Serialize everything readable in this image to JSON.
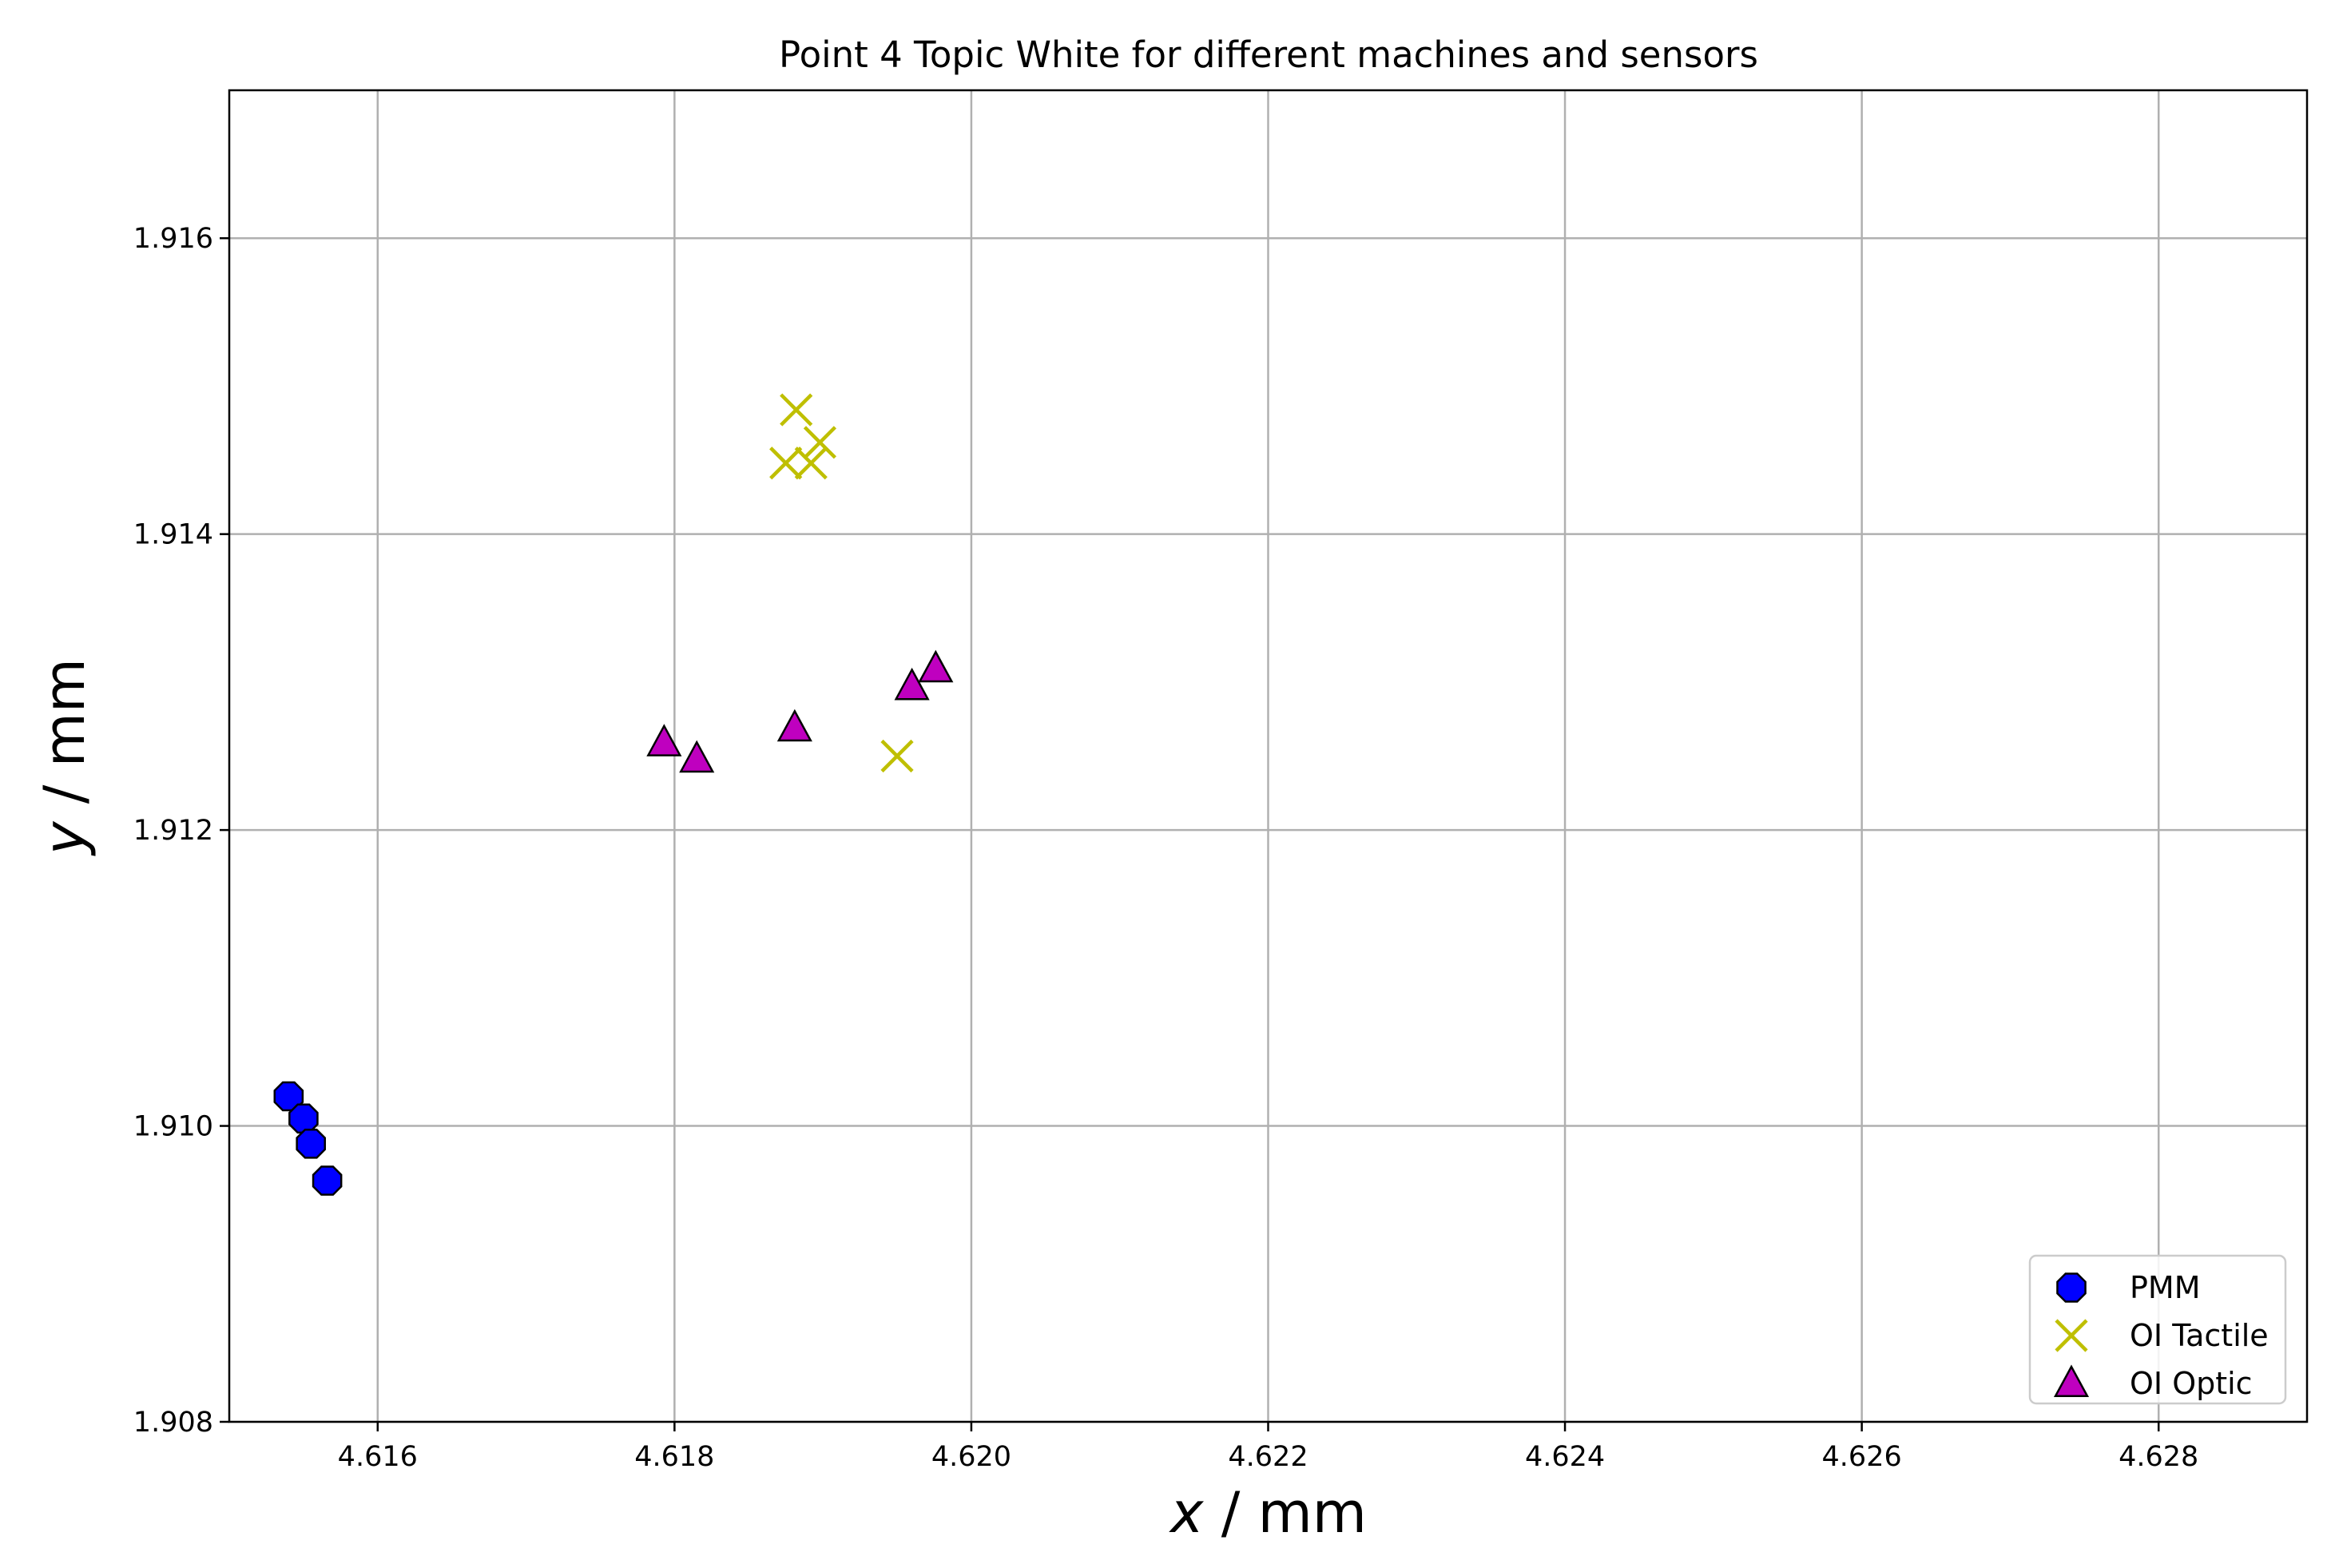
{
  "chart_data": {
    "type": "scatter",
    "title": "Point 4 Topic White for different machines and sensors",
    "xlabel_var": "x",
    "xlabel_unit": " / mm",
    "ylabel_var": "y",
    "ylabel_unit": " / mm",
    "xlim": [
      4.615,
      4.629
    ],
    "ylim": [
      1.908,
      1.917
    ],
    "xticks": [
      4.616,
      4.618,
      4.62,
      4.622,
      4.624,
      4.626,
      4.628
    ],
    "xtick_labels": [
      "4.616",
      "4.618",
      "4.620",
      "4.622",
      "4.624",
      "4.626",
      "4.628"
    ],
    "yticks": [
      1.908,
      1.91,
      1.912,
      1.914,
      1.916
    ],
    "ytick_labels": [
      "1.908",
      "1.910",
      "1.912",
      "1.914",
      "1.916"
    ],
    "grid": true,
    "legend_position": "lower-right",
    "series": [
      {
        "name": "PMM",
        "marker": "octagon",
        "color": "#0000ff",
        "edge_color": "#000000",
        "points": [
          [
            4.6154,
            1.9102
          ],
          [
            4.6155,
            1.91005
          ],
          [
            4.61555,
            1.90988
          ],
          [
            4.61566,
            1.90963
          ]
        ]
      },
      {
        "name": "OI Tactile",
        "marker": "x",
        "color": "#bfbf00",
        "edge_color": "#bfbf00",
        "points": [
          [
            4.61882,
            1.91484
          ],
          [
            4.61875,
            1.91448
          ],
          [
            4.61892,
            1.91448
          ],
          [
            4.61898,
            1.91462
          ],
          [
            4.6195,
            1.9125
          ]
        ]
      },
      {
        "name": "OI Optic",
        "marker": "triangle",
        "color": "#bf00bf",
        "edge_color": "#000000",
        "points": [
          [
            4.61793,
            1.91259
          ],
          [
            4.61815,
            1.91248
          ],
          [
            4.61881,
            1.91269
          ],
          [
            4.6196,
            1.91297
          ],
          [
            4.61976,
            1.91309
          ]
        ]
      }
    ]
  }
}
